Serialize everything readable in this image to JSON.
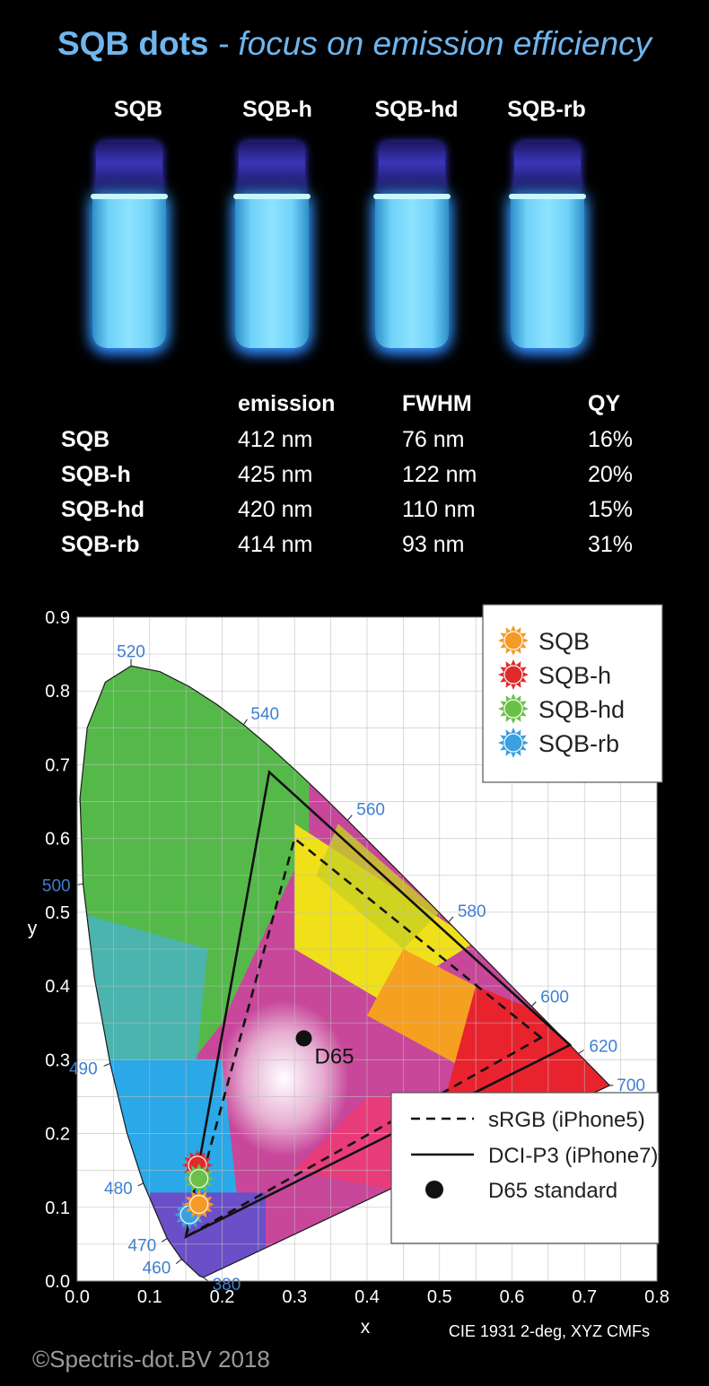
{
  "title": {
    "bold": "SQB dots",
    "italic": "- focus on emission efficiency"
  },
  "samples": [
    "SQB",
    "SQB-h",
    "SQB-hd",
    "SQB-rb"
  ],
  "table": {
    "headers": [
      "emission",
      "FWHM",
      "QY"
    ],
    "rows": [
      {
        "name": "SQB",
        "emission": "412 nm",
        "fwhm": "76 nm",
        "qy": "16%"
      },
      {
        "name": "SQB-h",
        "emission": "425 nm",
        "fwhm": "122 nm",
        "qy": "20%"
      },
      {
        "name": "SQB-hd",
        "emission": "420 nm",
        "fwhm": "110 nm",
        "qy": "15%"
      },
      {
        "name": "SQB-rb",
        "emission": "414 nm",
        "fwhm": "93 nm",
        "qy": "31%"
      }
    ]
  },
  "chart_data": {
    "type": "scatter",
    "xlabel": "x",
    "ylabel": "y",
    "xlim": [
      0.0,
      0.8
    ],
    "ylim": [
      0.0,
      0.9
    ],
    "xticks": [
      "0.0",
      "0.1",
      "0.2",
      "0.3",
      "0.4",
      "0.5",
      "0.6",
      "0.7",
      "0.8"
    ],
    "yticks": [
      "0.0",
      "0.1",
      "0.2",
      "0.3",
      "0.4",
      "0.5",
      "0.6",
      "0.7",
      "0.8",
      "0.9"
    ],
    "grid": true,
    "note": "CIE 1931 2-deg, XYZ CMFs",
    "locus": [
      [
        0.1741,
        0.005
      ],
      [
        0.1689,
        0.0069
      ],
      [
        0.144,
        0.0297
      ],
      [
        0.1241,
        0.0578
      ],
      [
        0.0913,
        0.1327
      ],
      [
        0.0687,
        0.2007
      ],
      [
        0.0454,
        0.295
      ],
      [
        0.0235,
        0.4127
      ],
      [
        0.0082,
        0.5384
      ],
      [
        0.0039,
        0.6548
      ],
      [
        0.0139,
        0.7502
      ],
      [
        0.0389,
        0.812
      ],
      [
        0.0743,
        0.8338
      ],
      [
        0.1142,
        0.8262
      ],
      [
        0.1547,
        0.8059
      ],
      [
        0.1929,
        0.7816
      ],
      [
        0.2296,
        0.7543
      ],
      [
        0.2658,
        0.7243
      ],
      [
        0.3016,
        0.6923
      ],
      [
        0.3373,
        0.6589
      ],
      [
        0.3731,
        0.6245
      ],
      [
        0.4087,
        0.5896
      ],
      [
        0.4441,
        0.5547
      ],
      [
        0.4788,
        0.5202
      ],
      [
        0.5125,
        0.4866
      ],
      [
        0.5448,
        0.4544
      ],
      [
        0.5752,
        0.4242
      ],
      [
        0.6029,
        0.3965
      ],
      [
        0.627,
        0.3725
      ],
      [
        0.6482,
        0.3514
      ],
      [
        0.6658,
        0.334
      ],
      [
        0.6801,
        0.3197
      ],
      [
        0.6915,
        0.3083
      ],
      [
        0.7006,
        0.2993
      ],
      [
        0.714,
        0.2859
      ],
      [
        0.7347,
        0.2653
      ]
    ],
    "wavelength_labels": [
      {
        "label": "380",
        "x": 0.1741,
        "y": 0.005
      },
      {
        "label": "460",
        "x": 0.144,
        "y": 0.0297
      },
      {
        "label": "470",
        "x": 0.1241,
        "y": 0.0578
      },
      {
        "label": "480",
        "x": 0.0913,
        "y": 0.1327
      },
      {
        "label": "490",
        "x": 0.0454,
        "y": 0.295
      },
      {
        "label": "500",
        "x": 0.0082,
        "y": 0.5384
      },
      {
        "label": "520",
        "x": 0.0743,
        "y": 0.8338
      },
      {
        "label": "540",
        "x": 0.2296,
        "y": 0.7543
      },
      {
        "label": "560",
        "x": 0.3731,
        "y": 0.6245
      },
      {
        "label": "580",
        "x": 0.5125,
        "y": 0.4866
      },
      {
        "label": "600",
        "x": 0.627,
        "y": 0.3725
      },
      {
        "label": "620",
        "x": 0.6915,
        "y": 0.3083
      },
      {
        "label": "700",
        "x": 0.7347,
        "y": 0.2653
      }
    ],
    "gamuts": [
      {
        "name": "sRGB (iPhone5)",
        "style": "dashed",
        "points": [
          [
            0.64,
            0.33
          ],
          [
            0.3,
            0.6
          ],
          [
            0.15,
            0.06
          ]
        ]
      },
      {
        "name": "DCI-P3 (iPhone7)",
        "style": "solid",
        "points": [
          [
            0.68,
            0.32
          ],
          [
            0.265,
            0.69
          ],
          [
            0.15,
            0.06
          ]
        ]
      }
    ],
    "whitepoint": {
      "name": "D65 standard",
      "label": "D65",
      "x": 0.3127,
      "y": 0.329
    },
    "series": [
      {
        "name": "SQB",
        "color": "#f39a28",
        "x": 0.168,
        "y": 0.104
      },
      {
        "name": "SQB-h",
        "color": "#e02b2b",
        "x": 0.166,
        "y": 0.157
      },
      {
        "name": "SQB-hd",
        "color": "#6cc04a",
        "x": 0.168,
        "y": 0.139
      },
      {
        "name": "SQB-rb",
        "color": "#3aa0e0",
        "x": 0.155,
        "y": 0.09
      }
    ]
  },
  "footer": "©Spectris-dot.BV 2018"
}
